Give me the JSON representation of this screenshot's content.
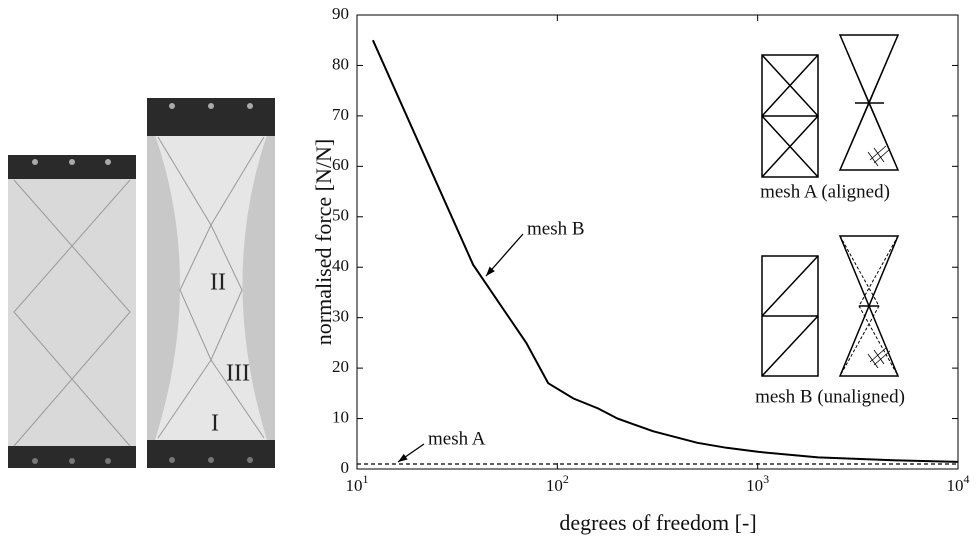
{
  "chart_data": {
    "type": "line",
    "xlabel": "degrees of freedom [-]",
    "ylabel": "normalised force [N/N]",
    "x_log_scale": true,
    "xlim": [
      10,
      10000
    ],
    "ylim": [
      0,
      90
    ],
    "xticks": [
      {
        "value": 10,
        "label": "10",
        "exponent": "1"
      },
      {
        "value": 100,
        "label": "10",
        "exponent": "2"
      },
      {
        "value": 1000,
        "label": "10",
        "exponent": "3"
      },
      {
        "value": 10000,
        "label": "10",
        "exponent": "4"
      }
    ],
    "yticks": [
      0,
      10,
      20,
      30,
      40,
      50,
      60,
      70,
      80,
      90
    ],
    "series": [
      {
        "name": "mesh B",
        "color": "#000000",
        "dash": false,
        "x": [
          12,
          38,
          70,
          90,
          120,
          160,
          200,
          300,
          500,
          700,
          1000,
          2000,
          5000,
          10000
        ],
        "values": [
          85,
          40.5,
          25,
          17,
          14,
          12,
          10,
          7.5,
          5.2,
          4.2,
          3.4,
          2.3,
          1.7,
          1.4
        ]
      },
      {
        "name": "mesh A",
        "color": "#000000",
        "dash": true,
        "x": [
          10,
          10000
        ],
        "values": [
          1,
          1
        ]
      }
    ],
    "annotations": [
      "mesh A (aligned)",
      "mesh B (unaligned)"
    ],
    "photo_labels": [
      "II",
      "III",
      "I"
    ]
  }
}
